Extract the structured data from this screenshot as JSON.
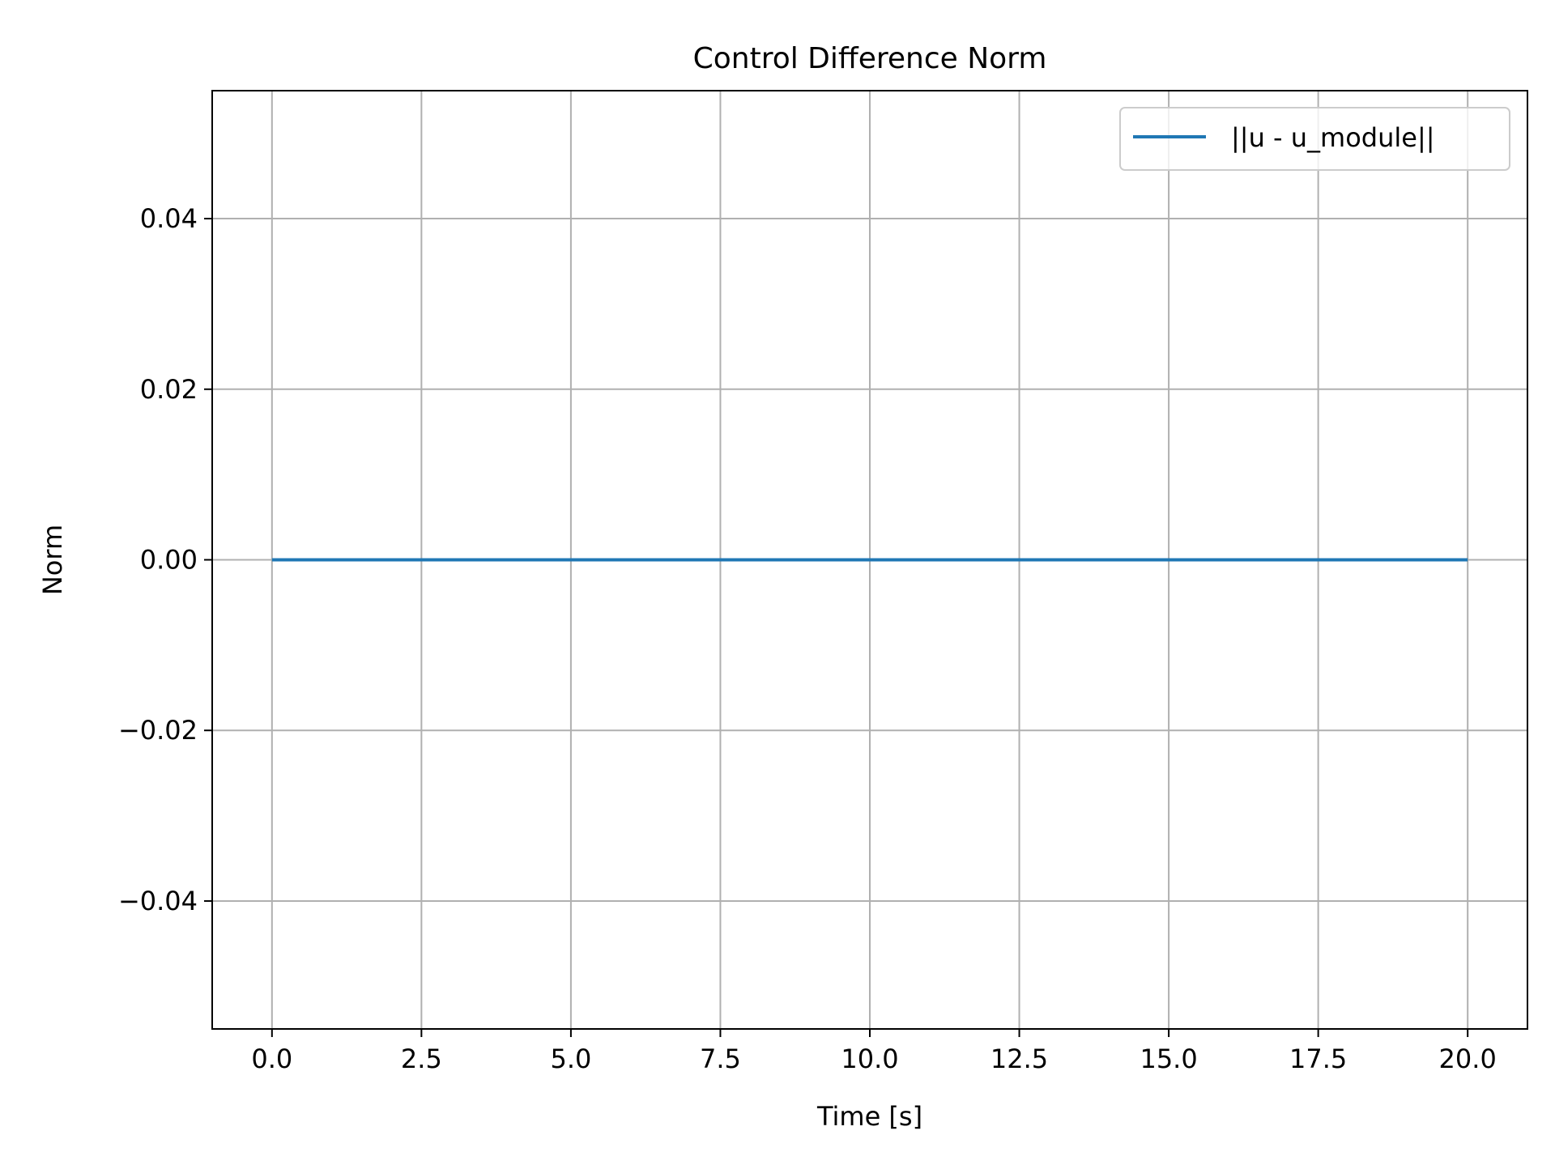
{
  "chart_data": {
    "type": "line",
    "title": "Control Difference Norm",
    "xlabel": "Time [s]",
    "ylabel": "Norm",
    "xlim": [
      -1.0,
      21.0
    ],
    "ylim": [
      -0.055,
      0.055
    ],
    "x_ticks": [
      0.0,
      2.5,
      5.0,
      7.5,
      10.0,
      12.5,
      15.0,
      17.5,
      20.0
    ],
    "x_tick_labels": [
      "0.0",
      "2.5",
      "5.0",
      "7.5",
      "10.0",
      "12.5",
      "15.0",
      "17.5",
      "20.0"
    ],
    "y_ticks": [
      -0.04,
      -0.02,
      0.0,
      0.02,
      0.04
    ],
    "y_tick_labels": [
      "−0.04",
      "−0.02",
      "0.00",
      "0.02",
      "0.04"
    ],
    "grid": true,
    "legend_position": "top-right",
    "series": [
      {
        "name": "||u - u_module||",
        "color": "#1f77b4",
        "x": [
          0.0,
          20.0
        ],
        "y": [
          0.0,
          0.0
        ]
      }
    ]
  }
}
